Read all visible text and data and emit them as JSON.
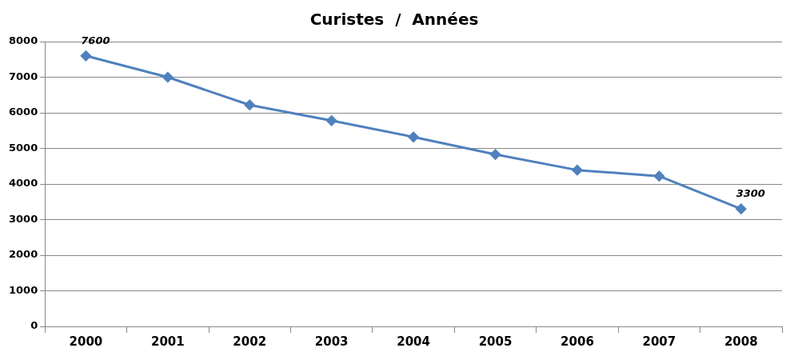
{
  "chart_data": {
    "type": "line",
    "title": "Curistes  /  Années",
    "categories": [
      "2000",
      "2001",
      "2002",
      "2003",
      "2004",
      "2005",
      "2006",
      "2007",
      "2008"
    ],
    "series": [
      {
        "color": "#4f81bd",
        "values": [
          7600,
          7000,
          6220,
          5780,
          5320,
          4830,
          4390,
          4220,
          3300
        ],
        "value_labels": [
          "7600",
          null,
          null,
          null,
          null,
          null,
          null,
          null,
          "3300"
        ]
      }
    ],
    "ylim": [
      0,
      8000
    ],
    "yticks": [
      0,
      1000,
      2000,
      3000,
      4000,
      5000,
      6000,
      7000,
      8000
    ],
    "grid": "y",
    "legend": false,
    "marker": "diamond",
    "line_style": "solid"
  }
}
